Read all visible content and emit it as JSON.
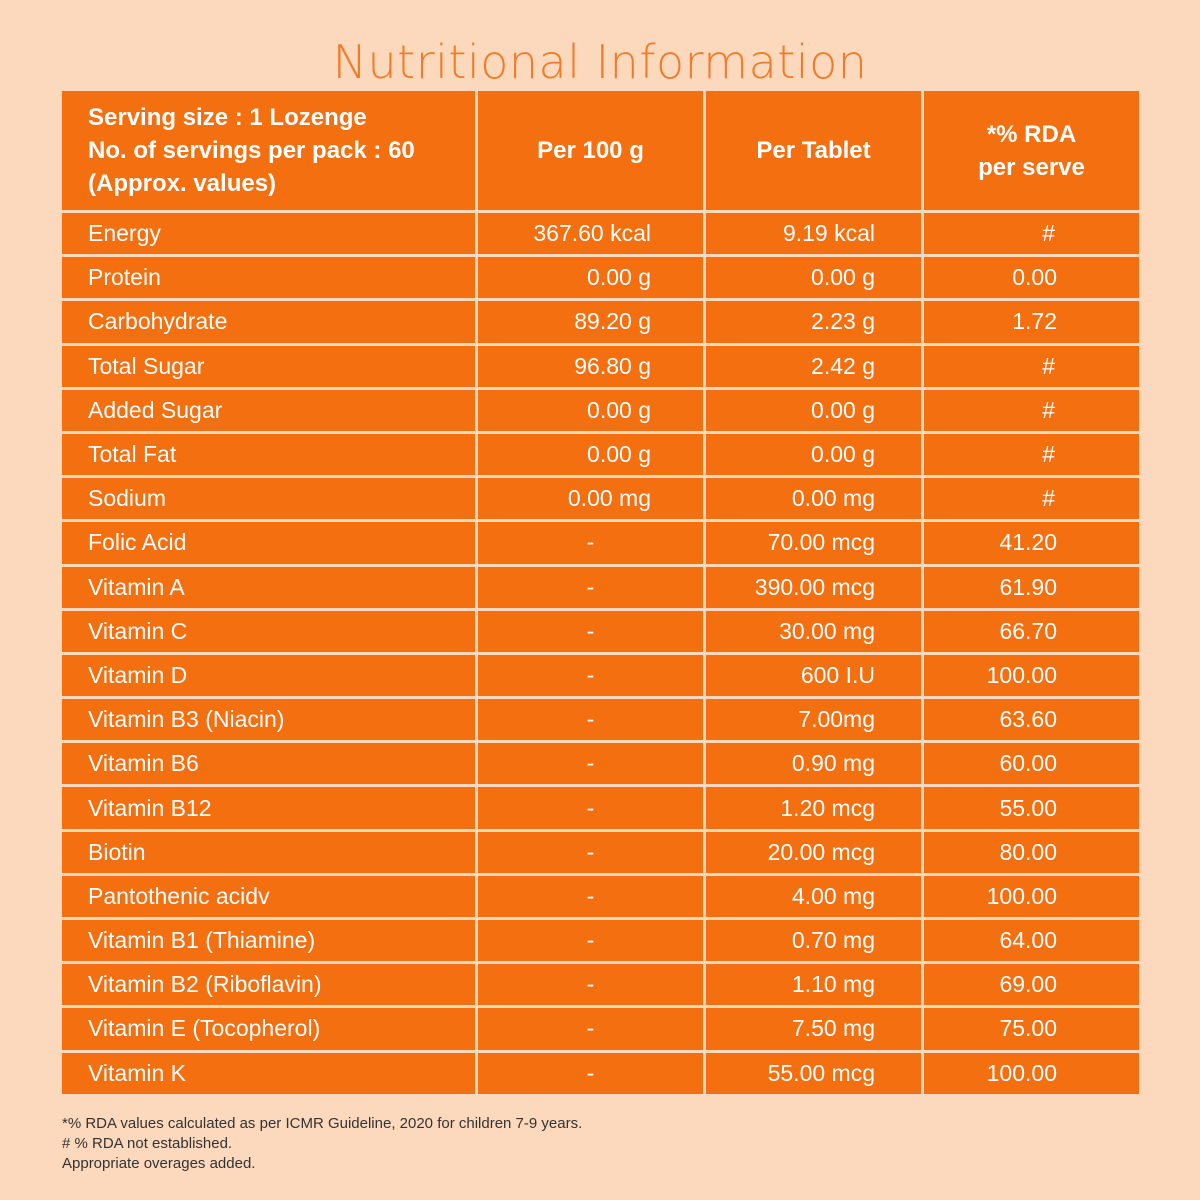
{
  "title": "Nutritional Information",
  "header": {
    "serving_line1": "Serving size : 1 Lozenge",
    "serving_line2": "No. of servings per pack : 60",
    "serving_line3": "(Approx. values)",
    "per100": "Per 100 g",
    "pertablet": "Per Tablet",
    "rda_line1": "*% RDA",
    "rda_line2": "per serve"
  },
  "rows": [
    {
      "name": "Energy",
      "per100": "367.60 kcal",
      "pertablet": "9.19 kcal",
      "rda": "#"
    },
    {
      "name": "Protein",
      "per100": "0.00 g",
      "pertablet": "0.00 g",
      "rda": "0.00"
    },
    {
      "name": "Carbohydrate",
      "per100": "89.20 g",
      "pertablet": "2.23 g",
      "rda": "1.72"
    },
    {
      "name": "Total Sugar",
      "per100": "96.80 g",
      "pertablet": "2.42 g",
      "rda": "#"
    },
    {
      "name": "Added Sugar",
      "per100": "0.00 g",
      "pertablet": "0.00 g",
      "rda": "#"
    },
    {
      "name": "Total Fat",
      "per100": "0.00 g",
      "pertablet": "0.00 g",
      "rda": "#"
    },
    {
      "name": "Sodium",
      "per100": "0.00 mg",
      "pertablet": "0.00 mg",
      "rda": "#"
    },
    {
      "name": "Folic Acid",
      "per100": "-",
      "pertablet": "70.00 mcg",
      "rda": "41.20"
    },
    {
      "name": "Vitamin A",
      "per100": "-",
      "pertablet": "390.00 mcg",
      "rda": "61.90"
    },
    {
      "name": "Vitamin C",
      "per100": "-",
      "pertablet": "30.00 mg",
      "rda": "66.70"
    },
    {
      "name": "Vitamin D",
      "per100": "-",
      "pertablet": "600 I.U",
      "rda": "100.00"
    },
    {
      "name": "Vitamin B3 (Niacin)",
      "per100": "-",
      "pertablet": "7.00mg",
      "rda": "63.60"
    },
    {
      "name": "Vitamin B6",
      "per100": "-",
      "pertablet": "0.90 mg",
      "rda": "60.00"
    },
    {
      "name": "Vitamin B12",
      "per100": "-",
      "pertablet": "1.20 mcg",
      "rda": "55.00"
    },
    {
      "name": "Biotin",
      "per100": "-",
      "pertablet": "20.00 mcg",
      "rda": "80.00"
    },
    {
      "name": "Pantothenic acidv",
      "per100": "-",
      "pertablet": "4.00 mg",
      "rda": "100.00"
    },
    {
      "name": "Vitamin B1 (Thiamine)",
      "per100": "-",
      "pertablet": "0.70 mg",
      "rda": "64.00"
    },
    {
      "name": "Vitamin B2 (Riboflavin)",
      "per100": "-",
      "pertablet": "1.10 mg",
      "rda": "69.00"
    },
    {
      "name": "Vitamin E (Tocopherol)",
      "per100": "-",
      "pertablet": "7.50 mg",
      "rda": "75.00"
    },
    {
      "name": "Vitamin K",
      "per100": "-",
      "pertablet": "55.00 mcg",
      "rda": "100.00"
    }
  ],
  "footer": {
    "note1": "*% RDA values calculated as per ICMR Guideline, 2020 for children 7-9 years.",
    "note2": "# % RDA not established.",
    "note3": "Appropriate overages added."
  },
  "colors": {
    "background": "#fcd8bc",
    "cell": "#f36f0f",
    "title": "#f07c2a"
  }
}
